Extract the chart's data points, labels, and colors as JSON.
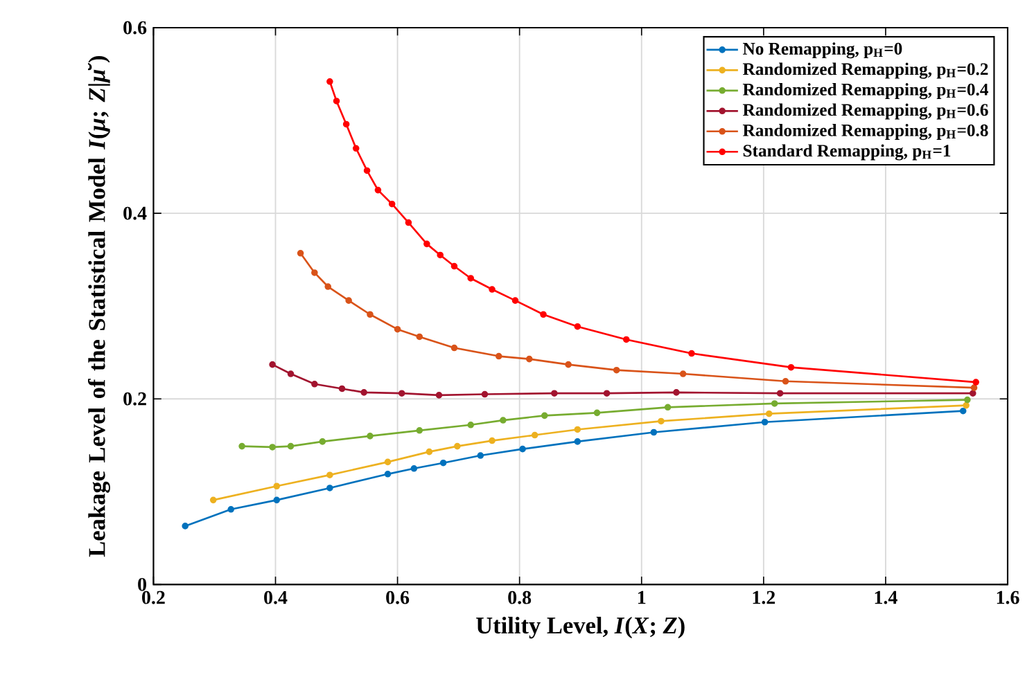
{
  "chart_data": {
    "type": "line",
    "xlabel": "Utility Level, *I*(*X*; *Z*)",
    "ylabel": "Leakage Level of the Statistical Model *I*(*μ*; *Z*|*μ̆*)",
    "xlim": [
      0.2,
      1.6
    ],
    "ylim": [
      0,
      0.6
    ],
    "xticks": [
      0.2,
      0.4,
      0.6,
      0.8,
      1,
      1.2,
      1.4,
      1.6
    ],
    "yticks": [
      0,
      0.2,
      0.4,
      0.6
    ],
    "grid": true,
    "legend": "top right",
    "marker": "circle",
    "series": [
      {
        "name": "No Remapping, p$_{H}$=0",
        "color": "#0072bd",
        "x": [
          0.252,
          0.327,
          0.402,
          0.489,
          0.584,
          0.627,
          0.675,
          0.736,
          0.805,
          0.895,
          1.02,
          1.202,
          1.527
        ],
        "values": [
          0.063,
          0.081,
          0.091,
          0.104,
          0.119,
          0.125,
          0.131,
          0.139,
          0.146,
          0.154,
          0.164,
          0.175,
          0.187
        ]
      },
      {
        "name": "Randomized Remapping, p$_{H}$=0.2",
        "color": "#edb120",
        "x": [
          0.298,
          0.402,
          0.489,
          0.584,
          0.652,
          0.698,
          0.755,
          0.825,
          0.895,
          1.032,
          1.209,
          1.532
        ],
        "values": [
          0.091,
          0.106,
          0.118,
          0.132,
          0.143,
          0.149,
          0.155,
          0.161,
          0.167,
          0.176,
          0.184,
          0.193
        ]
      },
      {
        "name": "Randomized Remapping, p$_{H}$=0.4",
        "color": "#77ac30",
        "x": [
          0.345,
          0.395,
          0.425,
          0.477,
          0.555,
          0.636,
          0.72,
          0.773,
          0.841,
          0.927,
          1.043,
          1.218,
          1.534
        ],
        "values": [
          0.149,
          0.148,
          0.149,
          0.154,
          0.16,
          0.166,
          0.172,
          0.177,
          0.182,
          0.185,
          0.191,
          0.195,
          0.199
        ]
      },
      {
        "name": "Randomized Remapping, p$_{H}$=0.6",
        "color": "#a2142f",
        "x": [
          0.395,
          0.425,
          0.464,
          0.509,
          0.545,
          0.607,
          0.668,
          0.743,
          0.857,
          0.943,
          1.057,
          1.227,
          1.543
        ],
        "values": [
          0.237,
          0.227,
          0.216,
          0.211,
          0.207,
          0.206,
          0.204,
          0.205,
          0.206,
          0.206,
          0.207,
          0.206,
          0.206
        ]
      },
      {
        "name": "Randomized Remapping, p$_{H}$=0.8",
        "color": "#d95319",
        "x": [
          0.441,
          0.464,
          0.486,
          0.52,
          0.555,
          0.6,
          0.636,
          0.693,
          0.766,
          0.816,
          0.88,
          0.959,
          1.068,
          1.236,
          1.545
        ],
        "values": [
          0.357,
          0.336,
          0.321,
          0.306,
          0.291,
          0.275,
          0.267,
          0.255,
          0.246,
          0.243,
          0.237,
          0.231,
          0.227,
          0.219,
          0.212
        ]
      },
      {
        "name": "Standard Remapping, p$_{H}$=1",
        "color": "#ff0000",
        "x": [
          0.489,
          0.5,
          0.516,
          0.532,
          0.55,
          0.568,
          0.591,
          0.618,
          0.648,
          0.67,
          0.693,
          0.72,
          0.755,
          0.793,
          0.839,
          0.895,
          0.975,
          1.082,
          1.245,
          1.548
        ],
        "values": [
          0.542,
          0.521,
          0.496,
          0.47,
          0.446,
          0.425,
          0.41,
          0.39,
          0.367,
          0.355,
          0.343,
          0.33,
          0.318,
          0.306,
          0.291,
          0.278,
          0.264,
          0.249,
          0.234,
          0.218
        ]
      }
    ]
  }
}
